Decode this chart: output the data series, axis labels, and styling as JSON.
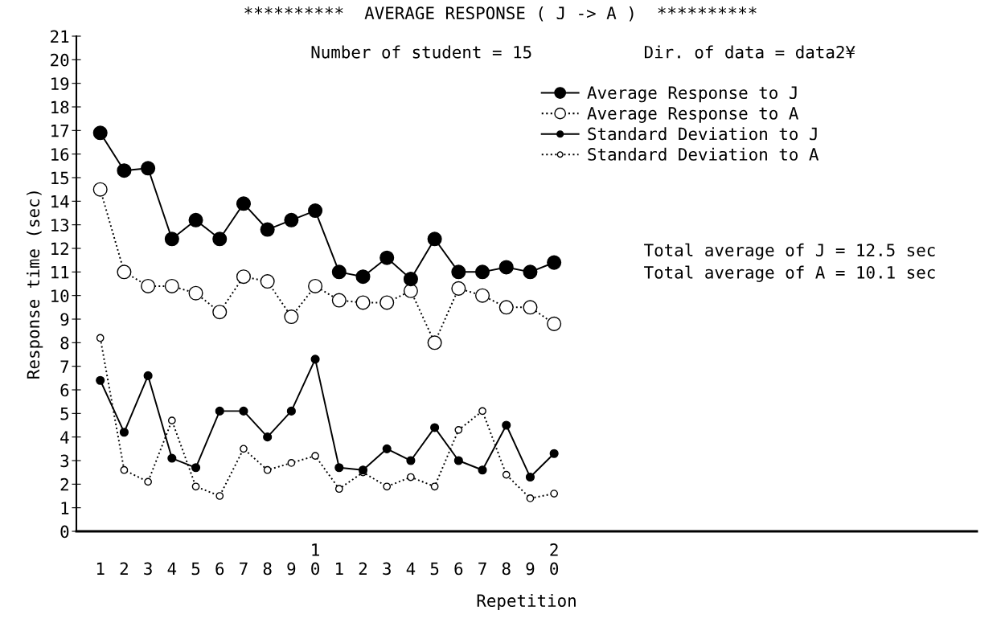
{
  "chart_data": {
    "type": "line",
    "title": "**********  AVERAGE RESPONSE ( J -> A )  **********",
    "xlabel": "Repetition",
    "ylabel": "Response time (sec)",
    "categories": [
      "1",
      "2",
      "3",
      "4",
      "5",
      "6",
      "7",
      "8",
      "9",
      "1\n0",
      "1",
      "2",
      "3",
      "4",
      "5",
      "6",
      "7",
      "8",
      "9",
      "2\n0"
    ],
    "ylim": [
      0,
      21
    ],
    "yticks": [
      0,
      1,
      2,
      3,
      4,
      5,
      6,
      7,
      8,
      9,
      10,
      11,
      12,
      13,
      14,
      15,
      16,
      17,
      18,
      19,
      20,
      21
    ],
    "marker": "circle",
    "grid": false,
    "legend": "top right",
    "series": [
      {
        "name": "Average Response to J",
        "color": "#000000",
        "line_style": "solid",
        "values": [
          16.9,
          15.3,
          15.4,
          12.4,
          13.2,
          12.4,
          13.9,
          12.8,
          13.2,
          13.6,
          11.0,
          10.8,
          11.6,
          10.7,
          12.4,
          11.0,
          11.0,
          11.2,
          11.0,
          11.4
        ]
      },
      {
        "name": "Average Response to A",
        "color": "#000000",
        "line_style": "dotted",
        "values": [
          14.5,
          11.0,
          10.4,
          10.4,
          10.1,
          9.3,
          10.8,
          10.6,
          9.1,
          10.4,
          9.8,
          9.7,
          9.7,
          10.2,
          8.0,
          10.3,
          10.0,
          9.5,
          9.5,
          8.8
        ]
      },
      {
        "name": "Standard Deviation to J",
        "color": "#000000",
        "line_style": "solid",
        "values": [
          6.4,
          4.2,
          6.6,
          3.1,
          2.7,
          5.1,
          5.1,
          4.0,
          5.1,
          7.3,
          2.7,
          2.6,
          3.5,
          3.0,
          4.4,
          3.0,
          2.6,
          4.5,
          2.3,
          3.3
        ]
      },
      {
        "name": "Standard Deviation to A",
        "color": "#000000",
        "line_style": "dotted",
        "values": [
          8.2,
          2.6,
          2.1,
          4.7,
          1.9,
          1.5,
          3.5,
          2.6,
          2.9,
          3.2,
          1.8,
          2.5,
          1.9,
          2.3,
          1.9,
          4.3,
          5.1,
          2.4,
          1.4,
          1.6
        ]
      }
    ],
    "annotations": [
      "Number of student = 15",
      "Dir. of data = data2¥",
      "Total average of J = 12.5 sec",
      "Total average of A = 10.1 sec"
    ]
  }
}
